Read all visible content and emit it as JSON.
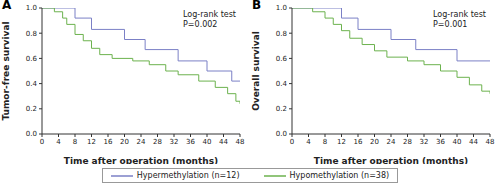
{
  "chart_data": [
    {
      "type": "line",
      "panel_label": "A",
      "y_label": "Tumor-free survival",
      "x_label": "Time after operation (months)",
      "annotations": [
        "Log-rank test",
        "P=0.002"
      ],
      "xlim": [
        0,
        48
      ],
      "xticks": [
        0,
        4,
        8,
        12,
        16,
        20,
        24,
        28,
        32,
        36,
        40,
        44,
        48
      ],
      "ylim": [
        0,
        1
      ],
      "yticks": [
        {
          "value": 0,
          "label": "0.0"
        },
        {
          "value": 0.2,
          "label": "0.2"
        },
        {
          "value": 0.4,
          "label": "0.4"
        },
        {
          "value": 0.6,
          "label": "0.6"
        },
        {
          "value": 0.8,
          "label": "0.8"
        },
        {
          "value": 1,
          "label": "1.0"
        }
      ],
      "line_style": "step",
      "series": [
        {
          "name": "Hypermethylation (n=12)",
          "color": "#7b80c6",
          "x": [
            0,
            8,
            12,
            20,
            25,
            33,
            40,
            46,
            48
          ],
          "values": [
            1.0,
            0.92,
            0.83,
            0.75,
            0.67,
            0.58,
            0.5,
            0.42,
            0.42
          ]
        },
        {
          "name": "Hypomethylation (n=38)",
          "color": "#6cb24e",
          "x": [
            0,
            3,
            5,
            6,
            8,
            10,
            12,
            14,
            17,
            22,
            26,
            30,
            33,
            38,
            42,
            45,
            47,
            48
          ],
          "values": [
            1.0,
            0.97,
            0.92,
            0.87,
            0.79,
            0.74,
            0.68,
            0.63,
            0.6,
            0.58,
            0.55,
            0.5,
            0.47,
            0.42,
            0.37,
            0.32,
            0.26,
            0.24
          ]
        }
      ]
    },
    {
      "type": "line",
      "panel_label": "B",
      "y_label": "Overall survival",
      "x_label": "Time after operation (months)",
      "annotations": [
        "Log-rank test",
        "P=0.001"
      ],
      "xlim": [
        0,
        48
      ],
      "xticks": [
        0,
        4,
        8,
        12,
        16,
        20,
        24,
        28,
        32,
        36,
        40,
        44,
        48
      ],
      "ylim": [
        0,
        1
      ],
      "yticks": [
        {
          "value": 0,
          "label": "0.0"
        },
        {
          "value": 0.2,
          "label": "0.2"
        },
        {
          "value": 0.4,
          "label": "0.4"
        },
        {
          "value": 0.6,
          "label": "0.6"
        },
        {
          "value": 0.8,
          "label": "0.8"
        },
        {
          "value": 1,
          "label": "1.0"
        }
      ],
      "line_style": "step",
      "series": [
        {
          "name": "Hypermethylation (n=12)",
          "color": "#7b80c6",
          "x": [
            0,
            12,
            16,
            24,
            30,
            40,
            48
          ],
          "values": [
            1.0,
            0.92,
            0.83,
            0.75,
            0.67,
            0.58,
            0.58
          ]
        },
        {
          "name": "Hypomethylation (n=38)",
          "color": "#6cb24e",
          "x": [
            0,
            5,
            8,
            10,
            12,
            14,
            17,
            20,
            23,
            28,
            32,
            36,
            40,
            43,
            46,
            48
          ],
          "values": [
            1.0,
            0.97,
            0.92,
            0.87,
            0.82,
            0.76,
            0.71,
            0.66,
            0.61,
            0.58,
            0.55,
            0.5,
            0.45,
            0.39,
            0.34,
            0.32
          ]
        }
      ]
    }
  ]
}
